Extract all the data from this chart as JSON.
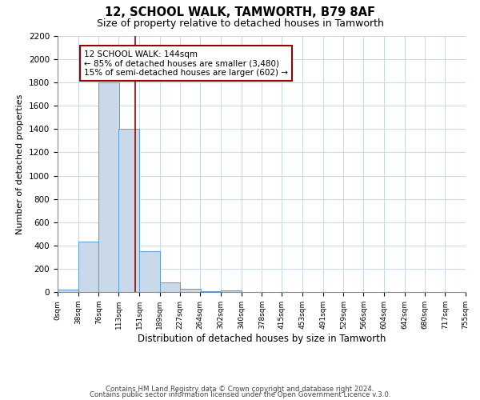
{
  "title": "12, SCHOOL WALK, TAMWORTH, B79 8AF",
  "subtitle": "Size of property relative to detached houses in Tamworth",
  "xlabel": "Distribution of detached houses by size in Tamworth",
  "ylabel": "Number of detached properties",
  "bar_left_edges": [
    0,
    38,
    76,
    113,
    151,
    189,
    227,
    264,
    302,
    340,
    378,
    415,
    453,
    491,
    529,
    566,
    604,
    642,
    680,
    717
  ],
  "bar_heights": [
    20,
    430,
    1800,
    1400,
    350,
    80,
    25,
    5,
    15,
    0,
    0,
    0,
    0,
    0,
    0,
    0,
    0,
    0,
    0,
    0
  ],
  "bin_width": 38,
  "bar_color": "#cad9ea",
  "bar_edge_color": "#5b9bd5",
  "tick_labels": [
    "0sqm",
    "38sqm",
    "76sqm",
    "113sqm",
    "151sqm",
    "189sqm",
    "227sqm",
    "264sqm",
    "302sqm",
    "340sqm",
    "378sqm",
    "415sqm",
    "453sqm",
    "491sqm",
    "529sqm",
    "566sqm",
    "604sqm",
    "642sqm",
    "680sqm",
    "717sqm",
    "755sqm"
  ],
  "ylim": [
    0,
    2200
  ],
  "yticks": [
    0,
    200,
    400,
    600,
    800,
    1000,
    1200,
    1400,
    1600,
    1800,
    2000,
    2200
  ],
  "property_size": 144,
  "vline_color": "#990000",
  "annotation_title": "12 SCHOOL WALK: 144sqm",
  "annotation_line1": "← 85% of detached houses are smaller (3,480)",
  "annotation_line2": "15% of semi-detached houses are larger (602) →",
  "annotation_box_color": "white",
  "annotation_box_edge_color": "#990000",
  "background_color": "white",
  "grid_color": "#c8d8e8",
  "footer_line1": "Contains HM Land Registry data © Crown copyright and database right 2024.",
  "footer_line2": "Contains public sector information licensed under the Open Government Licence v.3.0."
}
